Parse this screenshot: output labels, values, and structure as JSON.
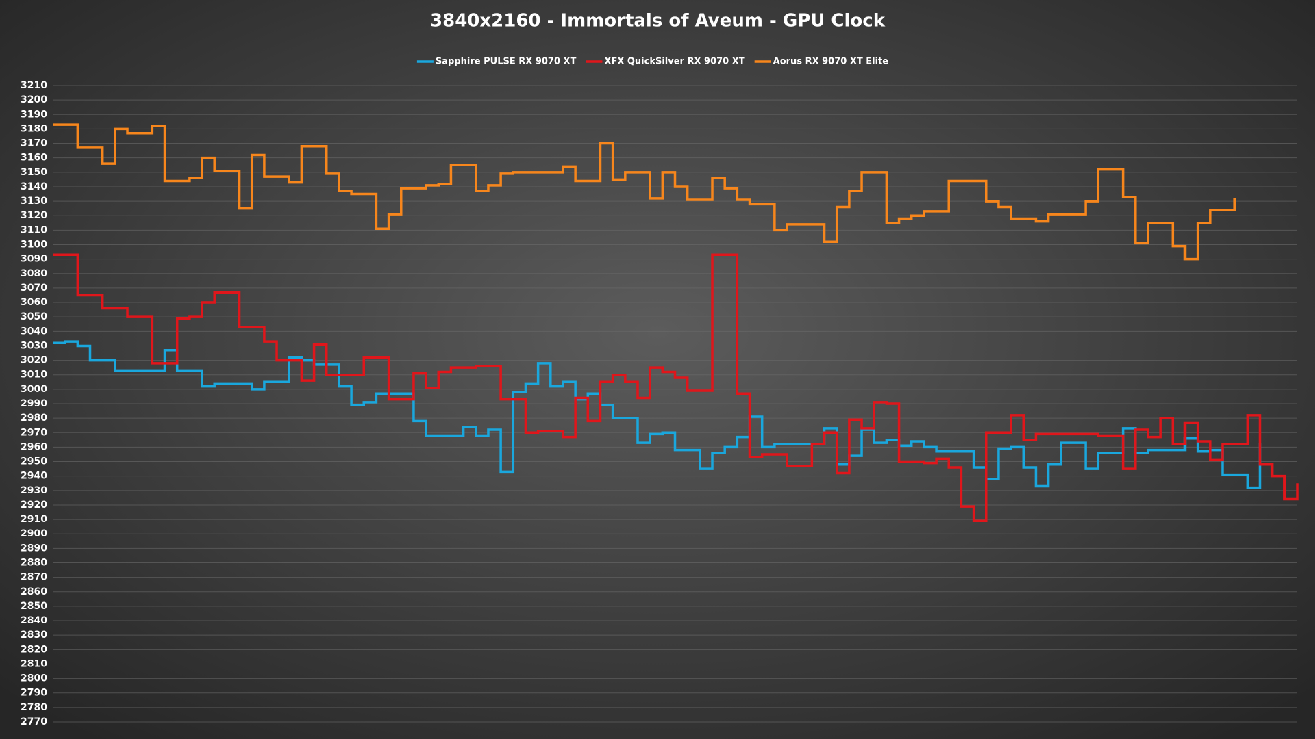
{
  "chart_data": {
    "type": "line",
    "step": true,
    "title": "3840x2160 - Immortals of Aveum - GPU Clock",
    "ylim": [
      2770,
      3210
    ],
    "yticks": [
      2770,
      2780,
      2790,
      2800,
      2810,
      2820,
      2830,
      2840,
      2850,
      2860,
      2870,
      2880,
      2890,
      2900,
      2910,
      2920,
      2930,
      2940,
      2950,
      2960,
      2970,
      2980,
      2990,
      3000,
      3010,
      3020,
      3030,
      3040,
      3050,
      3060,
      3070,
      3080,
      3090,
      3100,
      3110,
      3120,
      3130,
      3140,
      3150,
      3160,
      3170,
      3180,
      3190,
      3200,
      3210
    ],
    "grid": true,
    "legend": "top",
    "series": [
      {
        "name": "Sapphire PULSE RX 9070 XT",
        "color": "#1aa7dd",
        "values": [
          3032,
          3033,
          3030,
          3020,
          3020,
          3013,
          3013,
          3013,
          3013,
          3027,
          3013,
          3013,
          3002,
          3004,
          3004,
          3004,
          3000,
          3005,
          3005,
          3022,
          3020,
          3017,
          3017,
          3002,
          2989,
          2991,
          2997,
          2997,
          2997,
          2978,
          2968,
          2968,
          2968,
          2974,
          2968,
          2972,
          2943,
          2998,
          3004,
          3018,
          3002,
          3005,
          2993,
          2997,
          2989,
          2980,
          2980,
          2963,
          2969,
          2970,
          2958,
          2958,
          2945,
          2956,
          2960,
          2967,
          2981,
          2960,
          2962,
          2962,
          2962,
          2962,
          2973,
          2948,
          2954,
          2972,
          2963,
          2965,
          2961,
          2964,
          2960,
          2957,
          2957,
          2957,
          2946,
          2938,
          2959,
          2960,
          2946,
          2933,
          2948,
          2963,
          2963,
          2945,
          2956,
          2956,
          2973,
          2956,
          2958,
          2958,
          2958,
          2966,
          2957,
          2958,
          2941,
          2941,
          2932,
          2963
        ]
      },
      {
        "name": "XFX QuickSilver RX 9070 XT",
        "color": "#e0161b",
        "values": [
          3093,
          3093,
          3065,
          3065,
          3056,
          3056,
          3050,
          3050,
          3018,
          3018,
          3049,
          3050,
          3060,
          3067,
          3067,
          3043,
          3043,
          3033,
          3020,
          3020,
          3006,
          3031,
          3010,
          3010,
          3010,
          3022,
          3022,
          2993,
          2993,
          3011,
          3001,
          3012,
          3015,
          3015,
          3016,
          3016,
          2993,
          2993,
          2970,
          2971,
          2971,
          2967,
          2994,
          2978,
          3005,
          3010,
          3005,
          2994,
          3015,
          3012,
          3008,
          2999,
          2999,
          3093,
          3093,
          2997,
          2953,
          2955,
          2955,
          2947,
          2947,
          2962,
          2970,
          2942,
          2979,
          2973,
          2991,
          2990,
          2950,
          2950,
          2949,
          2952,
          2946,
          2919,
          2909,
          2970,
          2970,
          2982,
          2965,
          2969,
          2969,
          2969,
          2969,
          2969,
          2968,
          2968,
          2945,
          2972,
          2967,
          2980,
          2962,
          2977,
          2964,
          2951,
          2962,
          2962,
          2982,
          2948,
          2940,
          2924,
          2935
        ]
      },
      {
        "name": "Aorus RX 9070 XT Elite",
        "color": "#f7861c",
        "values": [
          3183,
          3183,
          3167,
          3167,
          3156,
          3180,
          3177,
          3177,
          3182,
          3144,
          3144,
          3146,
          3160,
          3151,
          3151,
          3125,
          3162,
          3147,
          3147,
          3143,
          3168,
          3168,
          3149,
          3137,
          3135,
          3135,
          3111,
          3121,
          3139,
          3139,
          3141,
          3142,
          3155,
          3155,
          3137,
          3141,
          3149,
          3150,
          3150,
          3150,
          3150,
          3154,
          3144,
          3144,
          3170,
          3145,
          3150,
          3150,
          3132,
          3150,
          3140,
          3131,
          3131,
          3146,
          3139,
          3131,
          3128,
          3128,
          3110,
          3114,
          3114,
          3114,
          3102,
          3126,
          3137,
          3150,
          3150,
          3115,
          3118,
          3120,
          3123,
          3123,
          3144,
          3144,
          3144,
          3130,
          3126,
          3118,
          3118,
          3116,
          3121,
          3121,
          3121,
          3130,
          3152,
          3152,
          3133,
          3101,
          3115,
          3115,
          3099,
          3090,
          3115,
          3124,
          3124,
          3132
        ]
      }
    ]
  }
}
